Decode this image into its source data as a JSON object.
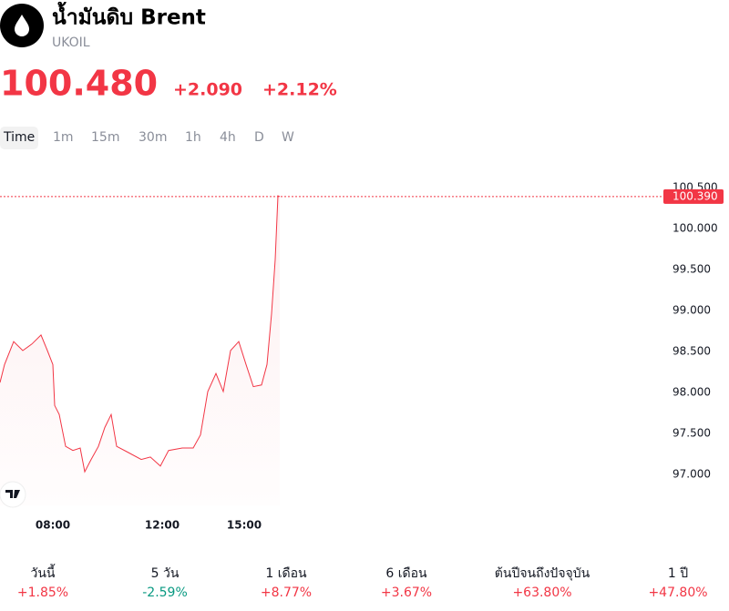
{
  "header": {
    "title": "น้ำมันดิบ Brent",
    "symbol": "UKOIL",
    "price": "100.480",
    "change": "+2.090",
    "change_percent": "+2.12%",
    "color": "#f23645"
  },
  "tabs": [
    "Time",
    "1m",
    "15m",
    "30m",
    "1h",
    "4h",
    "D",
    "W"
  ],
  "chart_data": {
    "type": "line",
    "x": [
      364,
      374,
      394,
      414,
      434,
      454,
      468,
      480,
      484,
      494,
      508,
      524,
      540,
      550,
      564,
      580,
      594,
      608,
      620,
      644,
      674,
      694,
      716,
      734,
      764,
      788,
      804,
      820,
      838,
      854,
      870,
      888,
      904,
      920,
      938,
      950,
      960,
      968,
      974,
      978
    ],
    "series": [
      {
        "color": "#f23645",
        "values": [
          98.12,
          98.34,
          98.62,
          98.51,
          98.59,
          98.7,
          98.51,
          98.34,
          97.84,
          97.73,
          97.34,
          97.29,
          97.32,
          97.03,
          97.18,
          97.34,
          97.57,
          97.73,
          97.34,
          97.27,
          97.18,
          97.21,
          97.1,
          97.29,
          97.32,
          97.32,
          97.48,
          98.01,
          98.23,
          98.01,
          98.51,
          98.62,
          98.34,
          98.07,
          98.09,
          98.34,
          98.96,
          99.62,
          100.4,
          100.39
        ]
      }
    ],
    "xlim": [
      364,
      1820
    ],
    "xticks": [
      {
        "value": 480,
        "label": "08:00"
      },
      {
        "value": 720,
        "label": "12:00"
      },
      {
        "value": 900,
        "label": "15:00"
      }
    ],
    "ylim": [
      96.62,
      100.9
    ],
    "yticks": [
      {
        "value": 97,
        "label": "97.000"
      },
      {
        "value": 97.5,
        "label": "97.500"
      },
      {
        "value": 98,
        "label": "98.000"
      },
      {
        "value": 98.5,
        "label": "98.500"
      },
      {
        "value": 99,
        "label": "99.000"
      },
      {
        "value": 99.5,
        "label": "99.500"
      },
      {
        "value": 100,
        "label": "100.000"
      },
      {
        "value": 100.5,
        "label": "100.500"
      }
    ],
    "price_line": {
      "value": 100.39,
      "label": "100.390"
    }
  },
  "performance": [
    {
      "label": "วันนี้",
      "value": "+1.85%",
      "color": "#f23645"
    },
    {
      "label": "5 วัน",
      "value": "-2.59%",
      "color": "#089981"
    },
    {
      "label": "1 เดือน",
      "value": "+8.77%",
      "color": "#f23645"
    },
    {
      "label": "6 เดือน",
      "value": "+3.67%",
      "color": "#f23645"
    },
    {
      "label": "ต้นปีจนถึงปัจจุบัน",
      "value": "+63.80%",
      "color": "#f23645"
    },
    {
      "label": "1 ปี",
      "value": "+47.80%",
      "color": "#f23645"
    }
  ]
}
